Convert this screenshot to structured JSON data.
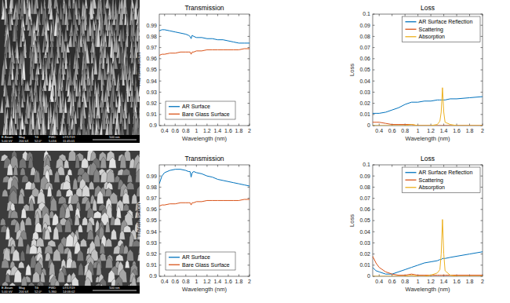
{
  "chart_data": [
    {
      "type": "line",
      "title": "Transmission",
      "x_label": "Wavelength (nm)",
      "y_label": "Transmission",
      "xlim": [
        0.3,
        2
      ],
      "ylim": [
        0.9,
        1
      ],
      "xticks": [
        0.4,
        0.6,
        0.8,
        1,
        1.2,
        1.4,
        1.6,
        1.8,
        2
      ],
      "yticks": [
        0.9,
        0.91,
        0.92,
        0.93,
        0.94,
        0.95,
        0.96,
        0.97,
        0.98,
        0.99
      ],
      "grid": false,
      "legend": "lower left",
      "x": [
        0.3,
        0.35,
        0.4,
        0.5,
        0.6,
        0.7,
        0.8,
        0.85,
        0.88,
        0.9,
        0.92,
        0.95,
        1,
        1.1,
        1.2,
        1.3,
        1.4,
        1.5,
        1.6,
        1.7,
        1.8,
        1.9,
        2
      ],
      "series": [
        {
          "name": "AR Surface",
          "color": "#0072bd",
          "values": [
            0.985,
            0.986,
            0.986,
            0.985,
            0.984,
            0.983,
            0.982,
            0.981,
            0.98,
            0.978,
            0.981,
            0.98,
            0.979,
            0.979,
            0.978,
            0.978,
            0.977,
            0.977,
            0.976,
            0.975,
            0.974,
            0.974,
            0.974
          ]
        },
        {
          "name": "Bare Glass Surface",
          "color": "#d95319",
          "values": [
            0.963,
            0.964,
            0.964,
            0.965,
            0.965,
            0.966,
            0.966,
            0.966,
            0.966,
            0.964,
            0.966,
            0.966,
            0.967,
            0.967,
            0.968,
            0.968,
            0.968,
            0.968,
            0.968,
            0.968,
            0.968,
            0.969,
            0.969
          ]
        }
      ]
    },
    {
      "type": "line",
      "title": "Loss",
      "x_label": "Wavelength (nm)",
      "y_label": "Loss",
      "xlim": [
        0.3,
        2
      ],
      "ylim": [
        0,
        0.1
      ],
      "xticks": [
        0.4,
        0.6,
        0.8,
        1,
        1.2,
        1.4,
        1.6,
        1.8,
        2
      ],
      "yticks": [
        0,
        0.01,
        0.02,
        0.03,
        0.04,
        0.05,
        0.06,
        0.07,
        0.08,
        0.09,
        0.1
      ],
      "grid": false,
      "legend": "upper right",
      "x": [
        0.3,
        0.35,
        0.4,
        0.5,
        0.6,
        0.7,
        0.8,
        0.9,
        1,
        1.1,
        1.2,
        1.3,
        1.34,
        1.36,
        1.38,
        1.4,
        1.42,
        1.5,
        1.6,
        1.8,
        2
      ],
      "series": [
        {
          "name": "AR Surface Reflection",
          "color": "#0072bd",
          "values": [
            0.011,
            0.011,
            0.011,
            0.012,
            0.014,
            0.016,
            0.019,
            0.021,
            0.021,
            0.022,
            0.022,
            0.023,
            0.023,
            0.023,
            0.023,
            0.023,
            0.023,
            0.024,
            0.024,
            0.025,
            0.026
          ]
        },
        {
          "name": "Scattering",
          "color": "#d95319",
          "values": [
            0.003,
            0.003,
            0.003,
            0.002,
            0.001,
            0.001,
            0.001,
            0.001,
            0,
            0,
            0,
            0,
            0,
            0,
            0,
            0,
            0,
            0,
            0,
            0,
            0
          ]
        },
        {
          "name": "Absorption",
          "color": "#edb120",
          "values": [
            0,
            0,
            0,
            0,
            0,
            0,
            0,
            0.001,
            0,
            0,
            0,
            0.001,
            0.004,
            0.012,
            0.034,
            0.012,
            0.003,
            0.001,
            0,
            0,
            0
          ]
        }
      ]
    },
    {
      "type": "line",
      "title": "Transmission",
      "x_label": "Wavelength (nm)",
      "y_label": "Transmission",
      "xlim": [
        0.3,
        2
      ],
      "ylim": [
        0.9,
        1
      ],
      "xticks": [
        0.4,
        0.6,
        0.8,
        1,
        1.2,
        1.4,
        1.6,
        1.8,
        2
      ],
      "yticks": [
        0.9,
        0.91,
        0.92,
        0.93,
        0.94,
        0.95,
        0.96,
        0.97,
        0.98,
        0.99
      ],
      "grid": false,
      "legend": "lower left",
      "x": [
        0.3,
        0.35,
        0.4,
        0.5,
        0.6,
        0.7,
        0.8,
        0.85,
        0.88,
        0.9,
        0.92,
        0.95,
        1,
        1.1,
        1.2,
        1.3,
        1.4,
        1.5,
        1.6,
        1.7,
        1.8,
        1.9,
        2
      ],
      "series": [
        {
          "name": "AR Surface",
          "color": "#0072bd",
          "values": [
            0.983,
            0.99,
            0.993,
            0.995,
            0.996,
            0.996,
            0.995,
            0.994,
            0.994,
            0.989,
            0.993,
            0.994,
            0.993,
            0.992,
            0.99,
            0.989,
            0.987,
            0.986,
            0.985,
            0.984,
            0.983,
            0.982,
            0.981
          ]
        },
        {
          "name": "Bare Glass Surface",
          "color": "#d95319",
          "values": [
            0.963,
            0.964,
            0.964,
            0.965,
            0.965,
            0.966,
            0.966,
            0.966,
            0.966,
            0.964,
            0.966,
            0.966,
            0.967,
            0.967,
            0.968,
            0.968,
            0.968,
            0.968,
            0.968,
            0.968,
            0.968,
            0.969,
            0.969
          ]
        }
      ]
    },
    {
      "type": "line",
      "title": "Loss",
      "x_label": "Wavelength (nm)",
      "y_label": "Loss",
      "xlim": [
        0.3,
        2
      ],
      "ylim": [
        0,
        0.1
      ],
      "xticks": [
        0.4,
        0.6,
        0.8,
        1,
        1.2,
        1.4,
        1.6,
        1.8,
        2
      ],
      "yticks": [
        0,
        0.01,
        0.02,
        0.03,
        0.04,
        0.05,
        0.06,
        0.07,
        0.08,
        0.09,
        0.1
      ],
      "grid": false,
      "legend": "upper right",
      "x": [
        0.3,
        0.35,
        0.4,
        0.5,
        0.6,
        0.7,
        0.8,
        0.9,
        1,
        1.1,
        1.2,
        1.3,
        1.34,
        1.36,
        1.38,
        1.4,
        1.42,
        1.5,
        1.6,
        1.8,
        2
      ],
      "series": [
        {
          "name": "AR Surface Reflection",
          "color": "#0072bd",
          "values": [
            0.008,
            0.005,
            0.004,
            0.002,
            0.002,
            0.004,
            0.006,
            0.008,
            0.01,
            0.012,
            0.013,
            0.014,
            0.015,
            0.015,
            0.016,
            0.016,
            0.016,
            0.017,
            0.018,
            0.02,
            0.022
          ]
        },
        {
          "name": "Scattering",
          "color": "#d95319",
          "values": [
            0.018,
            0.012,
            0.008,
            0.004,
            0.002,
            0.001,
            0.001,
            0.002,
            0.001,
            0.001,
            0.001,
            0.001,
            0.001,
            0.001,
            0.001,
            0.001,
            0.001,
            0.001,
            0.001,
            0.001,
            0.001
          ]
        },
        {
          "name": "Absorption",
          "color": "#edb120",
          "values": [
            0,
            0,
            0,
            0,
            0,
            0,
            0,
            0.001,
            0,
            0,
            0.001,
            0.003,
            0.006,
            0.02,
            0.051,
            0.02,
            0.005,
            0.001,
            0,
            0,
            0
          ]
        }
      ]
    }
  ],
  "images": [
    {
      "info": [
        {
          "label": "E-Beam",
          "value": "5.00 kV"
        },
        {
          "label": "Mag",
          "value": "200 kX"
        },
        {
          "label": "Tilt",
          "value": "52.0°"
        },
        {
          "label": "FWD",
          "value": "5.016"
        }
      ],
      "date": "07/17/19",
      "time": "11:45:01",
      "scale_bar": "500 nm"
    },
    {
      "info": [
        {
          "label": "E-Beam",
          "value": "5.00 kV"
        },
        {
          "label": "Mag",
          "value": "200 kX"
        },
        {
          "label": "Tilt",
          "value": "52.0°"
        },
        {
          "label": "FWD",
          "value": "5.360"
        }
      ],
      "date": "07/17/19",
      "time": "14:06:02",
      "scale_bar": "500 nm"
    }
  ]
}
